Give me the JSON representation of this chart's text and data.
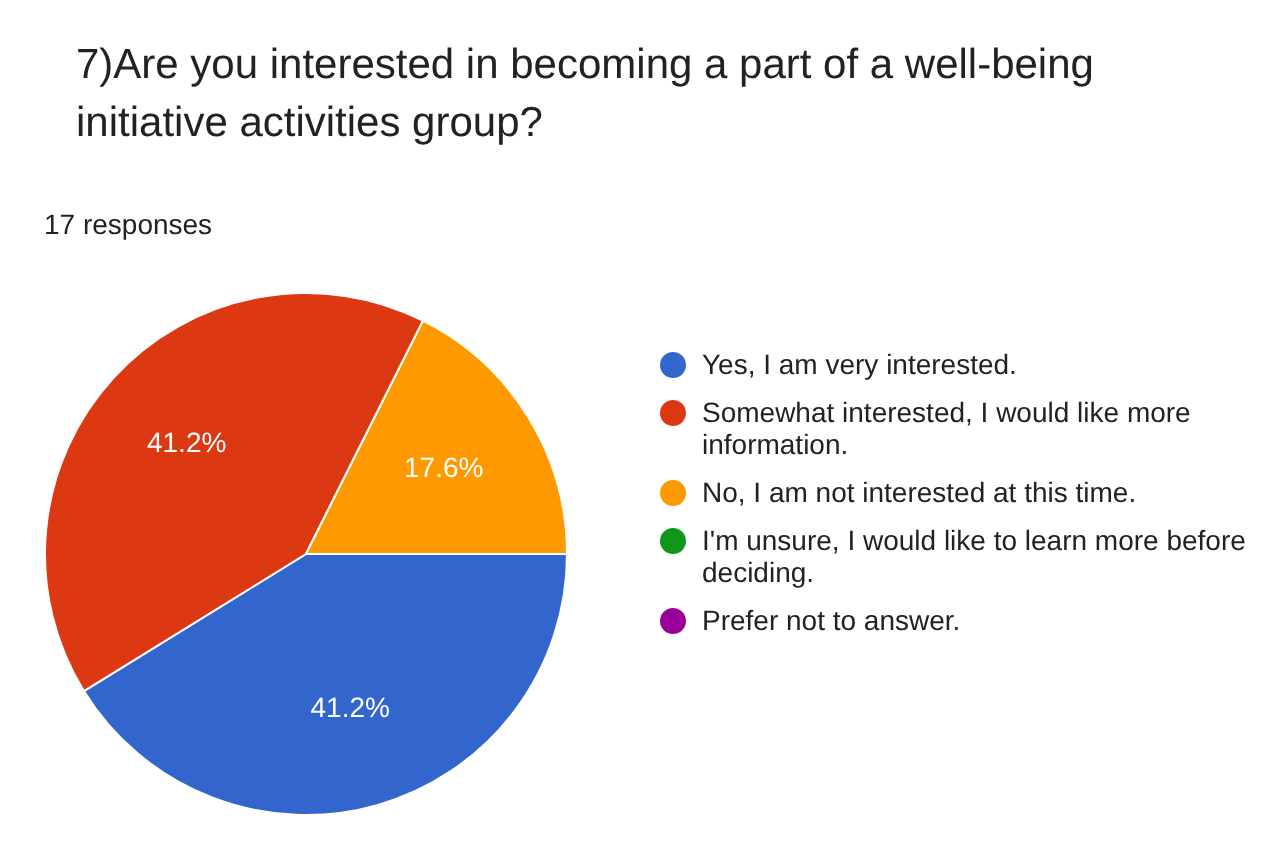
{
  "chart_data": {
    "type": "pie",
    "title": "7)Are you interested in becoming a part of a well-being initiative activities group?",
    "subtitle": "17 responses",
    "categories": [
      "Yes, I am very interested.",
      "Somewhat interested, I would like more information.",
      "No, I am not interested at this time.",
      "I'm unsure, I would like to learn more before deciding.",
      "Prefer not to answer."
    ],
    "values": [
      41.2,
      41.2,
      17.6,
      0,
      0
    ],
    "colors": [
      "#3366cc",
      "#dc3912",
      "#ff9900",
      "#109618",
      "#990099"
    ],
    "value_labels": [
      "41.2%",
      "41.2%",
      "17.6%",
      null,
      null
    ],
    "legend": "right"
  }
}
